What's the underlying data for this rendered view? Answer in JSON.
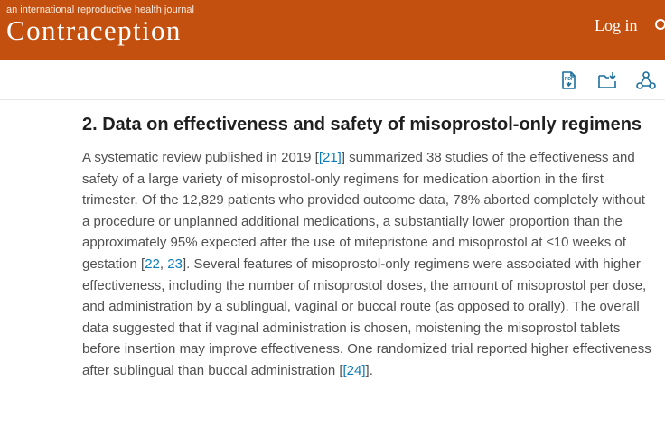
{
  "header": {
    "tagline": "an international reproductive health journal",
    "journal_title": "Contraception",
    "login_label": "Log in"
  },
  "toolbar": {
    "icons": [
      "pdf-icon",
      "add-to-folder-icon",
      "share-network-icon"
    ]
  },
  "article": {
    "section_title": "2. Data on effectiveness and safety of misoprostol-only regimens",
    "paragraph": {
      "seg1": "A systematic review published in 2019 [",
      "ref1": "[21]",
      "seg2": "] summarized 38 studies of the effectiveness and safety of a large variety of misoprostol-only regimens for medication abortion in the first trimester. Of the 12,829 patients who provided outcome data, 78% aborted completely without a procedure or unplanned additional medications, a substantially lower proportion than the approximately 95% expected after the use of mifepristone and misoprostol at ≤10 weeks of gestation [",
      "ref2": "22",
      "seg3": ", ",
      "ref3": "23",
      "seg4": "]. Several features of misoprostol-only regimens were associated with higher effectiveness, including the number of misoprostol doses, the amount of misoprostol per dose, and administration by a sublingual, vaginal or buccal route (as opposed to orally). The overall data suggested that if vaginal administration is chosen, moistening the misoprostol tablets before insertion may improve effectiveness. One randomized trial reported higher effectiveness after sublingual than buccal administration [",
      "ref4": "[24]",
      "seg5": "]."
    }
  },
  "colors": {
    "header_bg": "#c4500f",
    "link": "#0c7dbb",
    "icon": "#1a6f9c"
  }
}
